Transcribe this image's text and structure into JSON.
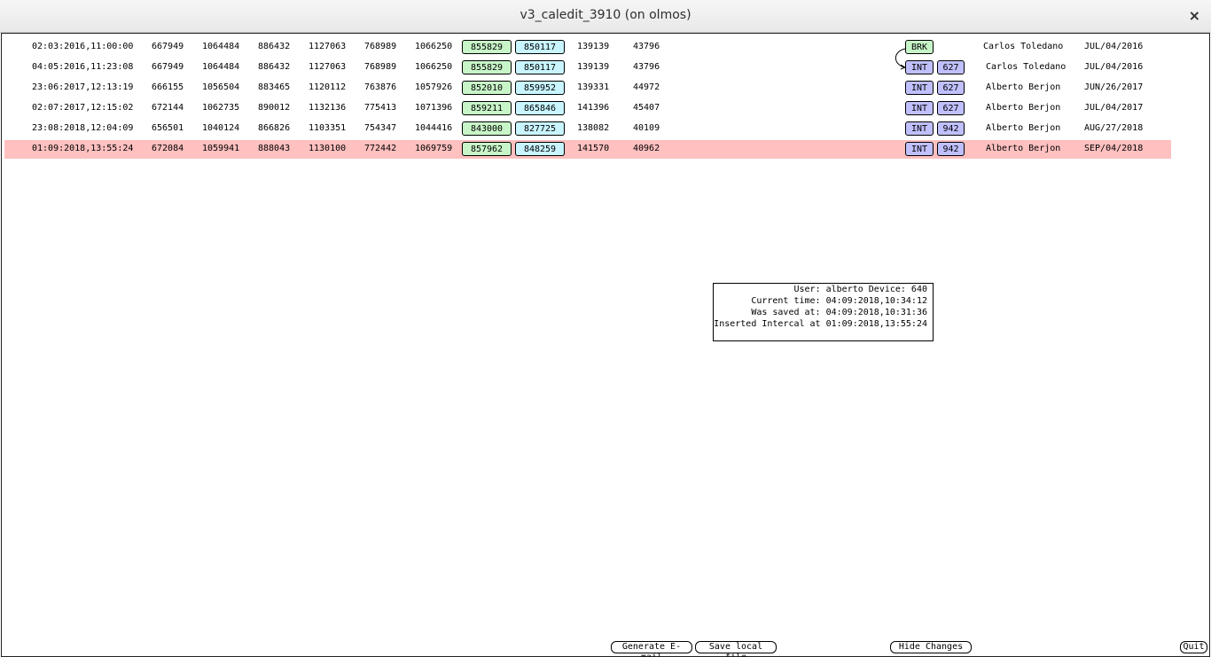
{
  "window": {
    "title": "v3_caledit_3910 (on olmos)",
    "close": "×"
  },
  "rows": [
    {
      "time": "02:03:2016,11:00:00",
      "cells": [
        "667949",
        "1064484",
        "886432",
        "1127063",
        "768989",
        "1066250"
      ],
      "green": "855829",
      "cyan": "850117",
      "tail": [
        "139139",
        "43796"
      ],
      "tag": "BRK",
      "tag_color": "#c8f5c8",
      "name": "Carlos Toledano",
      "date": "JUL/04/2016"
    },
    {
      "time": "04:05:2016,11:23:08",
      "cells": [
        "667949",
        "1064484",
        "886432",
        "1127063",
        "768989",
        "1066250"
      ],
      "green": "855829",
      "cyan": "850117",
      "tail": [
        "139139",
        "43796"
      ],
      "tag": "INT",
      "tag_color": "#c0c0ff",
      "badge": "627",
      "name": "Carlos Toledano",
      "date": "JUL/04/2016"
    },
    {
      "time": "23:06:2017,12:13:19",
      "cells": [
        "666155",
        "1056504",
        "883465",
        "1120112",
        "763876",
        "1057926"
      ],
      "green": "852010",
      "cyan": "859952",
      "tail": [
        "139331",
        "44972"
      ],
      "tag": "INT",
      "tag_color": "#c0c0ff",
      "badge": "627",
      "name": "Alberto Berjon",
      "date": "JUN/26/2017"
    },
    {
      "time": "02:07:2017,12:15:02",
      "cells": [
        "672144",
        "1062735",
        "890012",
        "1132136",
        "775413",
        "1071396"
      ],
      "green": "859211",
      "cyan": "865846",
      "tail": [
        "141396",
        "45407"
      ],
      "tag": "INT",
      "tag_color": "#c0c0ff",
      "badge": "627",
      "name": "Alberto Berjon",
      "date": "JUL/04/2017"
    },
    {
      "time": "23:08:2018,12:04:09",
      "cells": [
        "656501",
        "1040124",
        "866826",
        "1103351",
        "754347",
        "1044416"
      ],
      "green": "843000",
      "cyan": "827725",
      "tail": [
        "138082",
        "40109"
      ],
      "tag": "INT",
      "tag_color": "#c0c0ff",
      "badge": "942",
      "name": "Alberto Berjon",
      "date": "AUG/27/2018"
    },
    {
      "time": "01:09:2018,13:55:24",
      "cells": [
        "672084",
        "1059941",
        "888043",
        "1130100",
        "772442",
        "1069759"
      ],
      "green": "857962",
      "cyan": "848259",
      "tail": [
        "141570",
        "40962"
      ],
      "tag": "INT",
      "tag_color": "#c0c0ff",
      "badge": "942",
      "name": "Alberto Berjon",
      "date": "SEP/04/2018",
      "highlight": "#ffc0c0"
    }
  ],
  "info": [
    "User: alberto Device: 640",
    "Current time: 04:09:2018,10:34:12",
    "Was saved at: 04:09:2018,10:31:36",
    "Inserted Intercal at 01:09:2018,13:55:24"
  ],
  "buttons": [
    "Generate E-mail",
    "Save local file",
    "Hide Changes",
    "Quit"
  ]
}
